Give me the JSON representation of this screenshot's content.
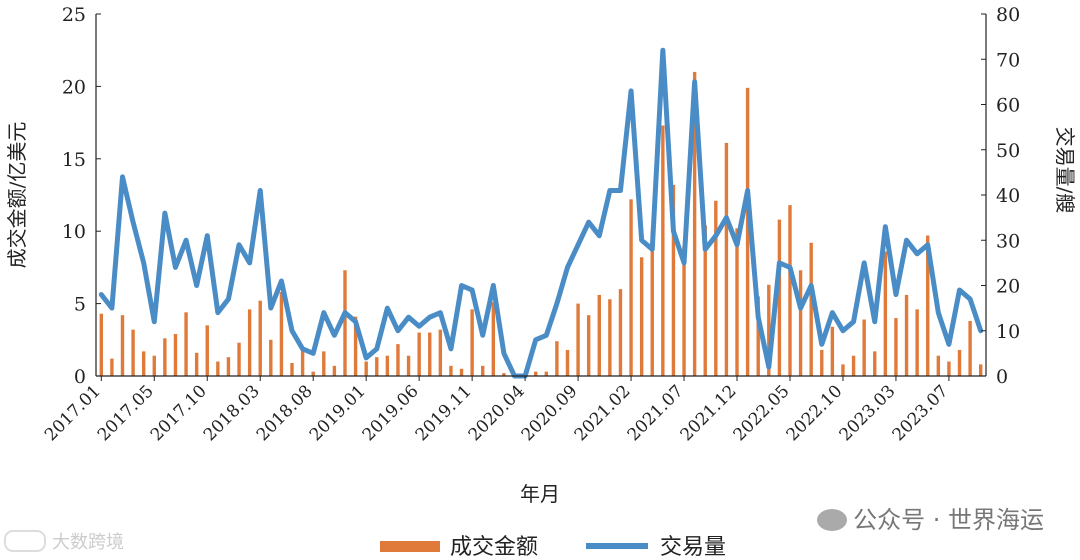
{
  "chart_data": {
    "type": "bar+line",
    "title": "",
    "xlabel": "年月",
    "ylabel_left": "成交金额/亿美元",
    "ylabel_right": "交易量/艘",
    "ylim_left": [
      0,
      25
    ],
    "ylim_right": [
      0,
      80
    ],
    "yticks_left": [
      "0",
      "5",
      "10",
      "15",
      "20",
      "25"
    ],
    "yticks_right": [
      "0",
      "10",
      "20",
      "30",
      "40",
      "50",
      "60",
      "70",
      "80"
    ],
    "x_tick_labels": [
      "2017.01",
      "2017.05",
      "2017.10",
      "2018.03",
      "2018.08",
      "2019.01",
      "2019.06",
      "2019.11",
      "2020.04",
      "2020.09",
      "2021.02",
      "2021.07",
      "2021.12",
      "2022.05",
      "2022.10",
      "2023.03",
      "2023.07"
    ],
    "legend_position": "bottom",
    "series": [
      {
        "name": "成交金额",
        "type": "bar",
        "axis": "left",
        "color": "#E07A3A",
        "values": [
          4.3,
          1.2,
          4.2,
          3.2,
          1.7,
          1.4,
          2.6,
          2.9,
          4.4,
          1.6,
          3.5,
          1.0,
          1.3,
          2.3,
          4.6,
          5.2,
          2.5,
          5.8,
          0.9,
          2.0,
          0.3,
          1.7,
          0.7,
          7.3,
          4.1,
          1.0,
          1.3,
          1.4,
          2.2,
          1.4,
          3.0,
          3.0,
          3.2,
          0.7,
          0.5,
          4.6,
          0.7,
          5.1,
          0.2,
          0.0,
          0.1,
          0.3,
          0.3,
          2.4,
          1.8,
          5.0,
          4.2,
          5.6,
          5.3,
          6.0,
          12.2,
          8.2,
          10.0,
          17.3,
          13.2,
          9.0,
          21.0,
          10.4,
          12.1,
          16.1,
          10.2,
          19.9,
          5.5,
          6.3,
          10.8,
          11.8,
          7.3,
          9.2,
          1.8,
          3.4,
          0.8,
          1.4,
          3.9,
          1.7,
          8.6,
          4.0,
          5.6,
          4.6,
          9.7,
          1.4,
          1.0,
          1.8,
          3.8,
          0.8
        ]
      },
      {
        "name": "交易量",
        "type": "line",
        "axis": "right",
        "color": "#4A8DC6",
        "values": [
          18,
          15,
          44,
          34,
          25,
          12,
          36,
          24,
          30,
          20,
          31,
          14,
          17,
          29,
          25,
          41,
          15,
          21,
          10,
          6,
          5,
          14,
          9,
          14,
          12,
          4,
          6,
          15,
          10,
          13,
          11,
          13,
          14,
          6,
          20,
          19,
          9,
          20,
          5,
          0,
          0,
          8,
          9,
          16,
          24,
          29,
          34,
          31,
          41,
          41,
          63,
          30,
          28,
          72,
          32,
          25,
          65,
          28,
          31,
          35,
          29,
          41,
          13,
          2,
          25,
          24,
          15,
          20,
          7,
          14,
          10,
          12,
          25,
          12,
          33,
          18,
          30,
          27,
          29,
          14,
          7,
          19,
          17,
          10
        ]
      }
    ]
  },
  "watermarks": {
    "wechat_account": "公众号 · 世界海运",
    "brand": "大数跨境"
  }
}
